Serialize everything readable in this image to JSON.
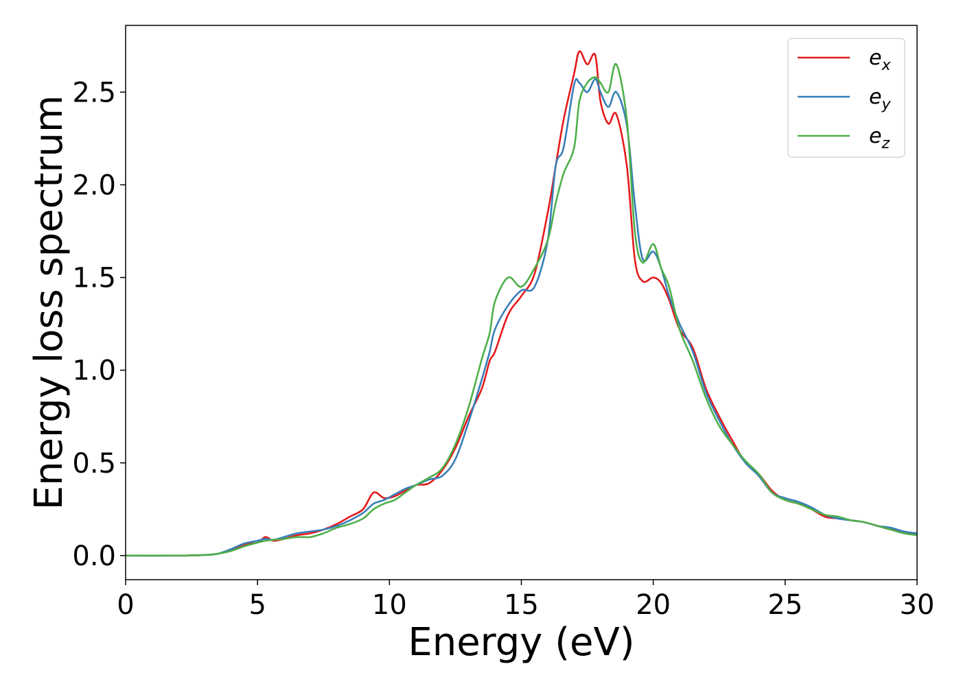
{
  "chart_data": {
    "type": "line",
    "title": "",
    "xlabel": "Energy (eV)",
    "ylabel": "Energy loss spectrum",
    "xlim": [
      0,
      30
    ],
    "ylim": [
      -0.13,
      2.86
    ],
    "xticks": [
      0,
      5,
      10,
      15,
      20,
      25,
      30
    ],
    "xtick_labels": [
      "0",
      "5",
      "10",
      "15",
      "20",
      "25",
      "30"
    ],
    "yticks": [
      0.0,
      0.5,
      1.0,
      1.5,
      2.0,
      2.5
    ],
    "ytick_labels": [
      "0.0",
      "0.5",
      "1.0",
      "1.5",
      "2.0",
      "2.5"
    ],
    "grid": false,
    "legend": {
      "placement": "top-right"
    },
    "series": [
      {
        "name": "e",
        "subscript": "x",
        "color": "#e41a1c",
        "x": [
          0,
          2,
          3,
          3.5,
          4,
          4.5,
          5,
          5.3,
          5.6,
          6,
          6.5,
          7,
          7.5,
          8,
          8.5,
          9,
          9.4,
          9.8,
          10.2,
          10.6,
          11,
          11.5,
          12,
          12.5,
          13,
          13.5,
          13.8,
          14,
          14.5,
          15,
          15.5,
          16,
          16.3,
          16.6,
          17,
          17.2,
          17.5,
          17.8,
          18,
          18.3,
          18.6,
          19,
          19.3,
          19.6,
          20,
          20.3,
          20.6,
          21,
          21.5,
          22,
          22.5,
          23,
          23.5,
          24,
          24.5,
          25,
          25.5,
          26,
          26.5,
          27,
          27.5,
          28,
          28.5,
          29,
          29.5,
          30
        ],
        "y": [
          0,
          0,
          0.003,
          0.01,
          0.03,
          0.06,
          0.07,
          0.1,
          0.08,
          0.09,
          0.11,
          0.12,
          0.14,
          0.17,
          0.21,
          0.25,
          0.34,
          0.31,
          0.32,
          0.35,
          0.38,
          0.39,
          0.46,
          0.58,
          0.75,
          0.9,
          1.05,
          1.1,
          1.3,
          1.4,
          1.52,
          1.85,
          2.1,
          2.35,
          2.6,
          2.72,
          2.65,
          2.7,
          2.45,
          2.33,
          2.38,
          2.1,
          1.6,
          1.48,
          1.5,
          1.47,
          1.38,
          1.22,
          1.12,
          0.9,
          0.75,
          0.62,
          0.5,
          0.44,
          0.35,
          0.3,
          0.28,
          0.25,
          0.21,
          0.2,
          0.19,
          0.18,
          0.16,
          0.14,
          0.13,
          0.11
        ]
      },
      {
        "name": "e",
        "subscript": "y",
        "color": "#377eb8",
        "x": [
          0,
          2,
          3,
          3.5,
          4,
          4.5,
          5,
          5.3,
          5.6,
          6,
          6.5,
          7,
          7.5,
          8,
          8.5,
          9,
          9.4,
          9.8,
          10.2,
          10.6,
          11,
          11.5,
          12,
          12.5,
          13,
          13.5,
          13.8,
          14,
          14.5,
          15,
          15.5,
          16,
          16.3,
          16.6,
          17,
          17.2,
          17.5,
          17.8,
          18,
          18.3,
          18.6,
          19,
          19.3,
          19.6,
          20,
          20.3,
          20.6,
          21,
          21.5,
          22,
          22.5,
          23,
          23.5,
          24,
          24.5,
          25,
          25.5,
          26,
          26.5,
          27,
          27.5,
          28,
          28.5,
          29,
          29.5,
          30
        ],
        "y": [
          0,
          0,
          0.003,
          0.01,
          0.035,
          0.065,
          0.08,
          0.09,
          0.085,
          0.1,
          0.12,
          0.13,
          0.14,
          0.16,
          0.19,
          0.23,
          0.28,
          0.3,
          0.33,
          0.36,
          0.38,
          0.41,
          0.43,
          0.52,
          0.72,
          0.95,
          1.1,
          1.22,
          1.35,
          1.43,
          1.45,
          1.7,
          2.1,
          2.2,
          2.54,
          2.55,
          2.5,
          2.57,
          2.5,
          2.42,
          2.5,
          2.32,
          1.9,
          1.6,
          1.64,
          1.55,
          1.4,
          1.25,
          1.1,
          0.88,
          0.73,
          0.6,
          0.5,
          0.43,
          0.34,
          0.31,
          0.29,
          0.26,
          0.22,
          0.2,
          0.19,
          0.18,
          0.16,
          0.15,
          0.13,
          0.12
        ]
      },
      {
        "name": "e",
        "subscript": "z",
        "color": "#4daf4a",
        "x": [
          0,
          2,
          3,
          3.5,
          4,
          4.5,
          5,
          5.3,
          5.6,
          6,
          6.5,
          7,
          7.5,
          8,
          8.5,
          9,
          9.4,
          9.8,
          10.2,
          10.6,
          11,
          11.5,
          12,
          12.5,
          13,
          13.5,
          13.8,
          14,
          14.5,
          15,
          15.5,
          16,
          16.3,
          16.6,
          17,
          17.2,
          17.5,
          17.8,
          18,
          18.3,
          18.6,
          19,
          19.3,
          19.6,
          20,
          20.3,
          20.6,
          21,
          21.5,
          22,
          22.5,
          23,
          23.5,
          24,
          24.5,
          25,
          25.5,
          26,
          26.5,
          27,
          27.5,
          28,
          28.5,
          29,
          29.5,
          30
        ],
        "y": [
          0,
          0,
          0.003,
          0.01,
          0.025,
          0.05,
          0.07,
          0.08,
          0.085,
          0.09,
          0.1,
          0.1,
          0.12,
          0.15,
          0.17,
          0.2,
          0.25,
          0.28,
          0.3,
          0.34,
          0.38,
          0.42,
          0.47,
          0.6,
          0.8,
          1.06,
          1.2,
          1.37,
          1.5,
          1.45,
          1.55,
          1.7,
          1.9,
          2.06,
          2.2,
          2.45,
          2.55,
          2.58,
          2.55,
          2.5,
          2.65,
          2.35,
          1.75,
          1.58,
          1.68,
          1.55,
          1.45,
          1.22,
          1.05,
          0.85,
          0.7,
          0.6,
          0.51,
          0.44,
          0.34,
          0.3,
          0.28,
          0.25,
          0.22,
          0.21,
          0.19,
          0.18,
          0.16,
          0.14,
          0.12,
          0.11
        ]
      }
    ]
  }
}
